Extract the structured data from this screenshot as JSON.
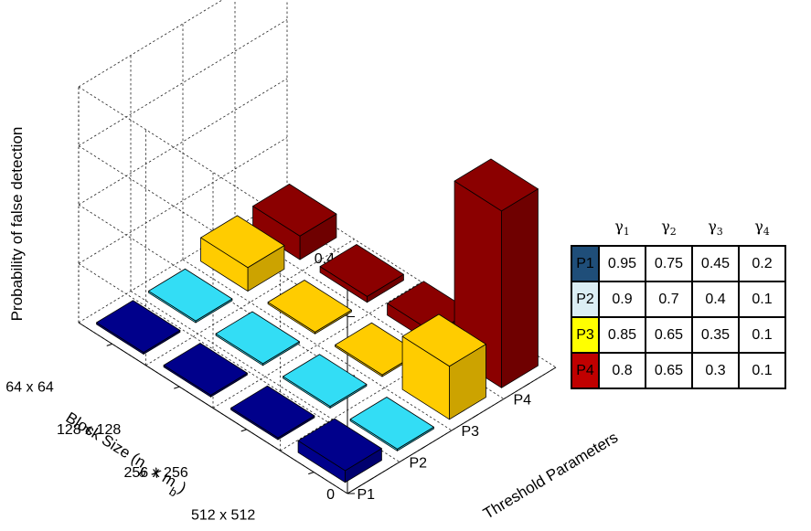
{
  "chart_data": {
    "type": "bar3d",
    "zlabel": "Probability of false detection",
    "xlabel": "Threshold Parameters",
    "ylabel": "Block Size (n_b x m_b)",
    "x_categories": [
      "P1",
      "P2",
      "P3",
      "P4"
    ],
    "y_categories": [
      "64 x 64",
      "128 x 128",
      "256 x 256",
      "512 x 512"
    ],
    "zlim": [
      0,
      0.4
    ],
    "z_ticks": [
      "0",
      "0.1",
      "0.2",
      "0.3",
      "0.4"
    ],
    "grid": true,
    "series": [
      {
        "name": "P1",
        "color": "#00008b",
        "values": [
          0.0,
          0.0,
          0.0,
          0.02
        ]
      },
      {
        "name": "P2",
        "color": "#33ddf5",
        "values": [
          0.0,
          0.0,
          0.0,
          0.0
        ]
      },
      {
        "name": "P3",
        "color": "#ffcc00",
        "values": [
          0.04,
          0.0,
          0.0,
          0.09
        ]
      },
      {
        "name": "P4",
        "color": "#8b0000",
        "values": [
          0.04,
          0.01,
          0.02,
          0.3
        ]
      }
    ]
  },
  "table": {
    "headers": [
      "γ1",
      "γ2",
      "γ3",
      "γ4"
    ],
    "rows": [
      {
        "label": "P1",
        "color": "#1f4e79",
        "values": [
          "0.95",
          "0.75",
          "0.45",
          "0.2"
        ]
      },
      {
        "label": "P2",
        "color": "#dbeef4",
        "values": [
          "0.9",
          "0.7",
          "0.4",
          "0.1"
        ]
      },
      {
        "label": "P3",
        "color": "#ffff00",
        "values": [
          "0.85",
          "0.65",
          "0.35",
          "0.1"
        ]
      },
      {
        "label": "P4",
        "color": "#c00000",
        "values": [
          "0.8",
          "0.65",
          "0.3",
          "0.1"
        ]
      }
    ]
  }
}
